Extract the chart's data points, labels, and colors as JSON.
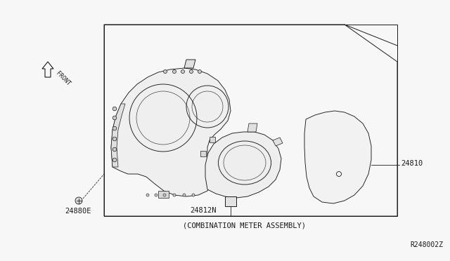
{
  "bg_color": "#f7f7f7",
  "line_color": "#1a1a1a",
  "fill_color": "#f0f0f0",
  "label_24810": "24810",
  "label_24812N": "24812N",
  "label_24880E": "24880E",
  "label_combination": "(COMBINATION METER ASSEMBLY)",
  "label_ref": "R248002Z",
  "label_front": "FRONT",
  "font_size": 7.5
}
